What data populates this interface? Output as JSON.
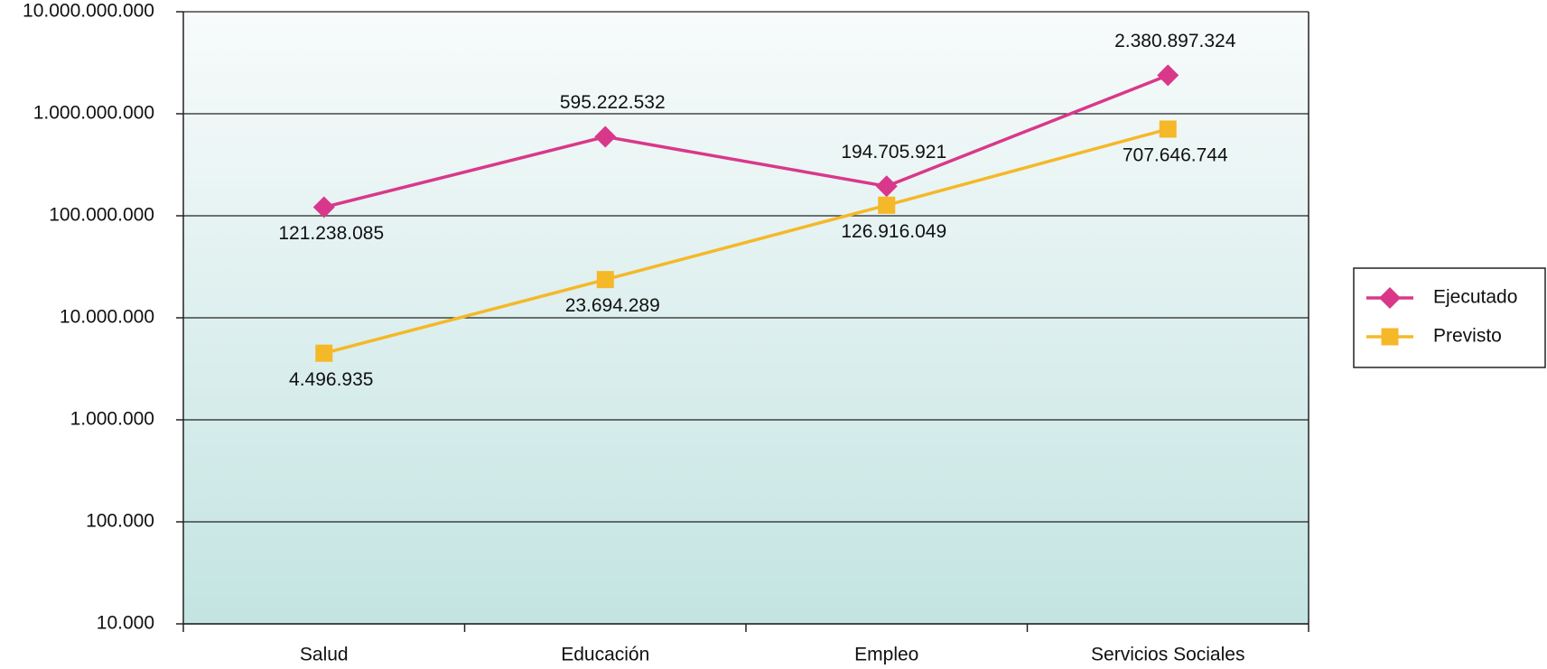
{
  "chart_data": {
    "type": "line",
    "categories": [
      "Salud",
      "Educación",
      "Empleo",
      "Servicios Sociales"
    ],
    "series": [
      {
        "name": "Ejecutado",
        "color": "#d9388a",
        "marker": "diamond",
        "values": [
          121238085,
          595222532,
          194705921,
          2380897324
        ],
        "value_labels": [
          "121.238.085",
          "595.222.532",
          "194.705.921",
          "2.380.897.324"
        ]
      },
      {
        "name": "Previsto",
        "color": "#f5b828",
        "marker": "square",
        "values": [
          4496935,
          23694289,
          126916049,
          707646744
        ],
        "value_labels": [
          "4.496.935",
          "23.694.289",
          "126.916.049",
          "707.646.744"
        ]
      }
    ],
    "ylim": [
      10000,
      10000000000
    ],
    "log_scale": true,
    "yticks": [
      {
        "value": 10000,
        "label": "10.000"
      },
      {
        "value": 100000,
        "label": "100.000"
      },
      {
        "value": 1000000,
        "label": "1.000.000"
      },
      {
        "value": 10000000,
        "label": "10.000.000"
      },
      {
        "value": 100000000,
        "label": "100.000.000"
      },
      {
        "value": 1000000000,
        "label": "1.000.000.000"
      },
      {
        "value": 10000000000,
        "label": "10.000.000.000"
      }
    ],
    "grid": true,
    "legend": "right"
  }
}
